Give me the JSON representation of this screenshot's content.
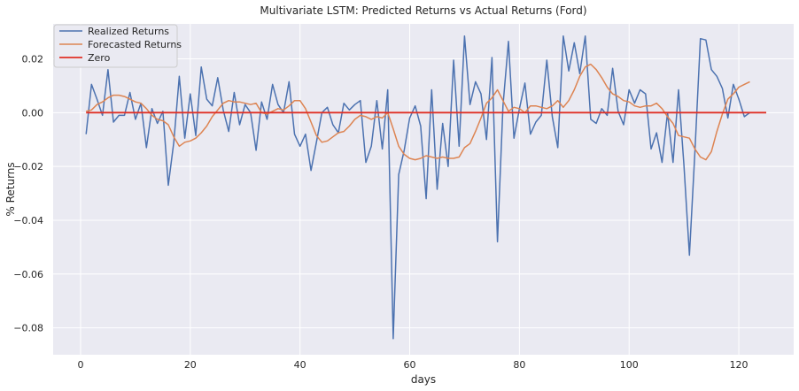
{
  "chart_data": {
    "type": "line",
    "title": "Multivariate LSTM: Predicted Returns vs Actual Returns (Ford)",
    "xlabel": "days",
    "ylabel": "% Returns",
    "xlim": [
      -5,
      130
    ],
    "ylim": [
      -0.09,
      0.033
    ],
    "xticks": [
      0,
      20,
      40,
      60,
      80,
      100,
      120
    ],
    "yticks": [
      -0.08,
      -0.06,
      -0.04,
      -0.02,
      0.0,
      0.02
    ],
    "xtick_labels": [
      "0",
      "20",
      "40",
      "60",
      "80",
      "100",
      "120"
    ],
    "ytick_labels": [
      "−0.08",
      "−0.06",
      "−0.04",
      "−0.02",
      "0.00",
      "0.02"
    ],
    "grid": true,
    "background": "#eaeaf2",
    "legend": {
      "position": "top-left"
    },
    "series": [
      {
        "name": "Realized Returns",
        "color": "#4c72b0",
        "x": [
          1,
          2,
          3,
          4,
          5,
          6,
          7,
          8,
          9,
          10,
          11,
          12,
          13,
          14,
          15,
          16,
          17,
          18,
          19,
          20,
          21,
          22,
          23,
          24,
          25,
          26,
          27,
          28,
          29,
          30,
          31,
          32,
          33,
          34,
          35,
          36,
          37,
          38,
          39,
          40,
          41,
          42,
          43,
          44,
          45,
          46,
          47,
          48,
          49,
          50,
          51,
          52,
          53,
          54,
          55,
          56,
          57,
          58,
          59,
          60,
          61,
          62,
          63,
          64,
          65,
          66,
          67,
          68,
          69,
          70,
          71,
          72,
          73,
          74,
          75,
          76,
          77,
          78,
          79,
          80,
          81,
          82,
          83,
          84,
          85,
          86,
          87,
          88,
          89,
          90,
          91,
          92,
          93,
          94,
          95,
          96,
          97,
          98,
          99,
          100,
          101,
          102,
          103,
          104,
          105,
          106,
          107,
          108,
          109,
          110,
          111,
          112,
          113,
          114,
          115,
          116,
          117,
          118,
          119,
          120,
          121,
          122
        ],
        "values": [
          -0.008,
          0.0105,
          0.005,
          -0.001,
          0.016,
          -0.0035,
          -0.001,
          -0.001,
          0.0075,
          -0.0025,
          0.0035,
          -0.013,
          0.0015,
          -0.004,
          0.0005,
          -0.027,
          -0.011,
          0.0135,
          -0.0095,
          0.007,
          -0.0085,
          0.017,
          0.005,
          0.0025,
          0.013,
          0.001,
          -0.007,
          0.0075,
          -0.0045,
          0.003,
          0.0,
          -0.014,
          0.004,
          -0.0025,
          0.0105,
          0.003,
          0.0,
          0.0115,
          -0.008,
          -0.0125,
          -0.008,
          -0.0215,
          -0.011,
          0.0,
          0.002,
          -0.0045,
          -0.0075,
          0.0035,
          0.001,
          0.003,
          0.0045,
          -0.0185,
          -0.0125,
          0.0045,
          -0.0135,
          0.0085,
          -0.084,
          -0.023,
          -0.014,
          -0.002,
          0.0025,
          -0.005,
          -0.032,
          0.0085,
          -0.0285,
          -0.004,
          -0.02,
          0.0195,
          -0.0125,
          0.0285,
          0.003,
          0.0115,
          0.007,
          -0.01,
          0.0205,
          -0.048,
          0.0025,
          0.0265,
          -0.0095,
          0.0015,
          0.011,
          -0.008,
          -0.0035,
          -0.001,
          0.0195,
          -0.0015,
          -0.013,
          0.0285,
          0.0155,
          0.026,
          0.0145,
          0.0285,
          -0.0025,
          -0.004,
          0.0015,
          -0.001,
          0.0165,
          0.0005,
          -0.0045,
          0.0085,
          0.0035,
          0.0085,
          0.007,
          -0.0135,
          -0.0075,
          -0.0185,
          0.0,
          -0.0185,
          0.0085,
          -0.0195,
          -0.053,
          -0.0145,
          0.0275,
          0.027,
          0.016,
          0.0135,
          0.009,
          -0.002,
          0.0105,
          0.005,
          -0.0015,
          0.0
        ]
      },
      {
        "name": "Forecasted Returns",
        "color": "#dd8452",
        "x": [
          1,
          2,
          3,
          4,
          5,
          6,
          7,
          8,
          9,
          10,
          11,
          12,
          13,
          14,
          15,
          16,
          17,
          18,
          19,
          20,
          21,
          22,
          23,
          24,
          25,
          26,
          27,
          28,
          29,
          30,
          31,
          32,
          33,
          34,
          35,
          36,
          37,
          38,
          39,
          40,
          41,
          42,
          43,
          44,
          45,
          46,
          47,
          48,
          49,
          50,
          51,
          52,
          53,
          54,
          55,
          56,
          57,
          58,
          59,
          60,
          61,
          62,
          63,
          64,
          65,
          66,
          67,
          68,
          69,
          70,
          71,
          72,
          73,
          74,
          75,
          76,
          77,
          78,
          79,
          80,
          81,
          82,
          83,
          84,
          85,
          86,
          87,
          88,
          89,
          90,
          91,
          92,
          93,
          94,
          95,
          96,
          97,
          98,
          99,
          100,
          101,
          102,
          103,
          104,
          105,
          106,
          107,
          108,
          109,
          110,
          111,
          112,
          113,
          114,
          115,
          116,
          117,
          118,
          119,
          120,
          121,
          122
        ],
        "values": [
          0.0005,
          0.001,
          0.003,
          0.004,
          0.0055,
          0.0065,
          0.0065,
          0.006,
          0.005,
          0.004,
          0.0035,
          0.0015,
          -0.001,
          -0.0025,
          -0.003,
          -0.0045,
          -0.009,
          -0.0125,
          -0.011,
          -0.0105,
          -0.0095,
          -0.0075,
          -0.005,
          -0.0015,
          0.001,
          0.0035,
          0.0045,
          0.004,
          0.004,
          0.0035,
          0.003,
          0.0035,
          0.0,
          -0.0005,
          0.0005,
          0.0015,
          0.001,
          0.0025,
          0.0045,
          0.0045,
          0.0015,
          -0.0035,
          -0.0085,
          -0.011,
          -0.0105,
          -0.009,
          -0.0075,
          -0.007,
          -0.005,
          -0.0025,
          -0.001,
          -0.0015,
          -0.0025,
          -0.0015,
          -0.002,
          0.0,
          -0.006,
          -0.0125,
          -0.0155,
          -0.017,
          -0.0175,
          -0.017,
          -0.016,
          -0.0165,
          -0.017,
          -0.0165,
          -0.017,
          -0.017,
          -0.0165,
          -0.013,
          -0.0115,
          -0.007,
          -0.002,
          0.0035,
          0.0055,
          0.0085,
          0.0045,
          0.0005,
          0.002,
          0.0015,
          0.0,
          0.0025,
          0.0025,
          0.002,
          0.0015,
          0.0025,
          0.0045,
          0.002,
          0.0045,
          0.0085,
          0.0135,
          0.017,
          0.018,
          0.016,
          0.013,
          0.0095,
          0.007,
          0.006,
          0.0045,
          0.004,
          0.0025,
          0.002,
          0.0025,
          0.0025,
          0.0035,
          0.0015,
          -0.0015,
          -0.004,
          -0.0085,
          -0.009,
          -0.0095,
          -0.0135,
          -0.0165,
          -0.0175,
          -0.0145,
          -0.007,
          -0.0005,
          0.005,
          0.007,
          0.0095,
          0.0105,
          0.0115
        ]
      },
      {
        "name": "Zero",
        "color": "#e03127",
        "x": [
          1,
          125
        ],
        "values": [
          0.0,
          0.0
        ]
      }
    ]
  }
}
